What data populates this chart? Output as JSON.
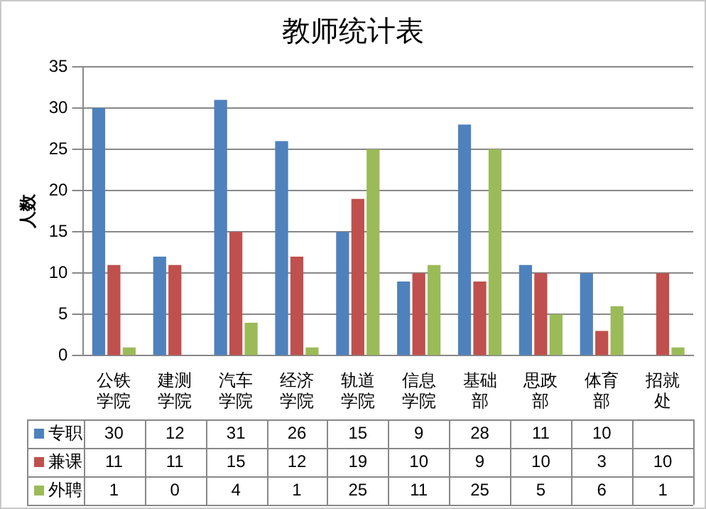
{
  "chart_data": {
    "type": "bar",
    "title": "教师统计表",
    "ylabel": "人数",
    "categories": [
      "公铁学院",
      "建测学院",
      "汽车学院",
      "经济学院",
      "轨道学院",
      "信息学院",
      "基础部",
      "思政部",
      "体育部",
      "招就处"
    ],
    "series": [
      {
        "name": "专职",
        "color": "#4f81bd",
        "values": [
          30,
          12,
          31,
          26,
          15,
          9,
          28,
          11,
          10,
          null
        ]
      },
      {
        "name": "兼课",
        "color": "#c0504d",
        "values": [
          11,
          11,
          15,
          12,
          19,
          10,
          9,
          10,
          3,
          10
        ]
      },
      {
        "name": "外聘",
        "color": "#9bbb59",
        "values": [
          1,
          0,
          4,
          1,
          25,
          11,
          25,
          5,
          6,
          1
        ]
      }
    ],
    "ylim": [
      0,
      35
    ],
    "yticks": [
      0,
      5,
      10,
      15,
      20,
      25,
      30,
      35
    ],
    "grid": "y",
    "legend": "bottom",
    "data_labels": true
  }
}
